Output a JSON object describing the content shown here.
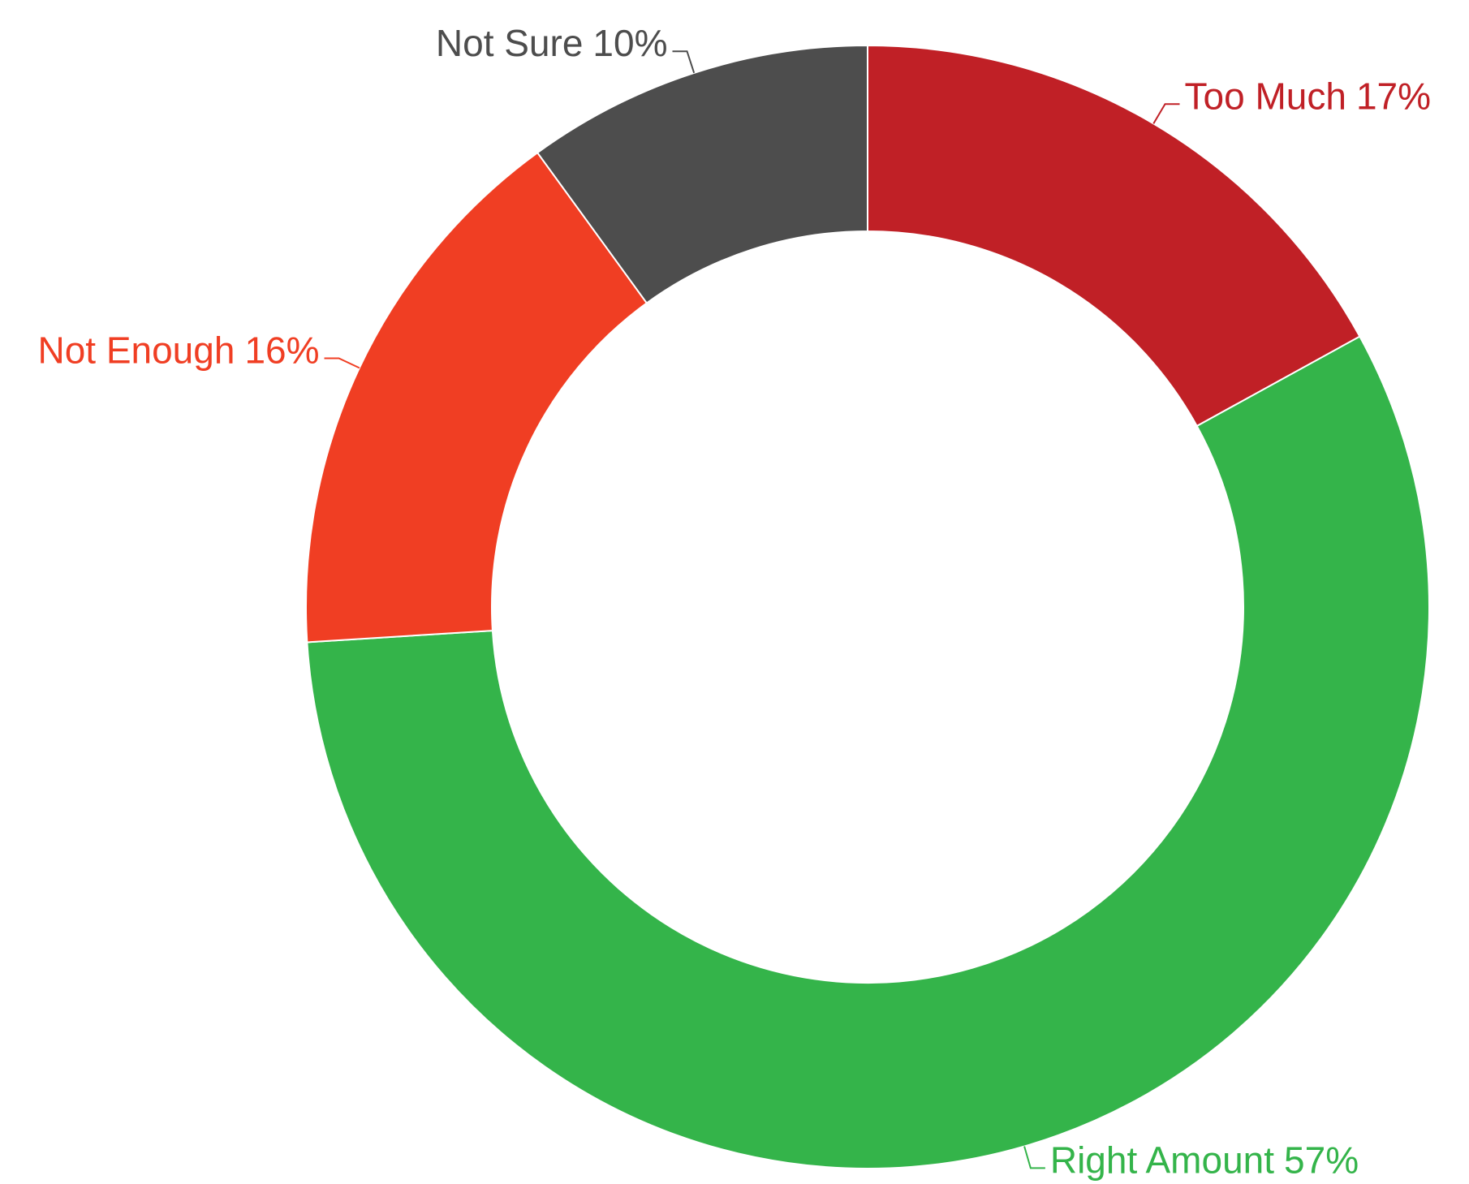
{
  "chart_data": {
    "type": "donut",
    "categories": [
      "Too Much",
      "Right Amount",
      "Not Enough",
      "Not Sure"
    ],
    "values": [
      17,
      57,
      16,
      10
    ],
    "value_labels": [
      "17%",
      "57%",
      "16%",
      "10%"
    ],
    "colors": [
      "#c02026",
      "#34b44a",
      "#f03e23",
      "#4d4d4d"
    ]
  }
}
